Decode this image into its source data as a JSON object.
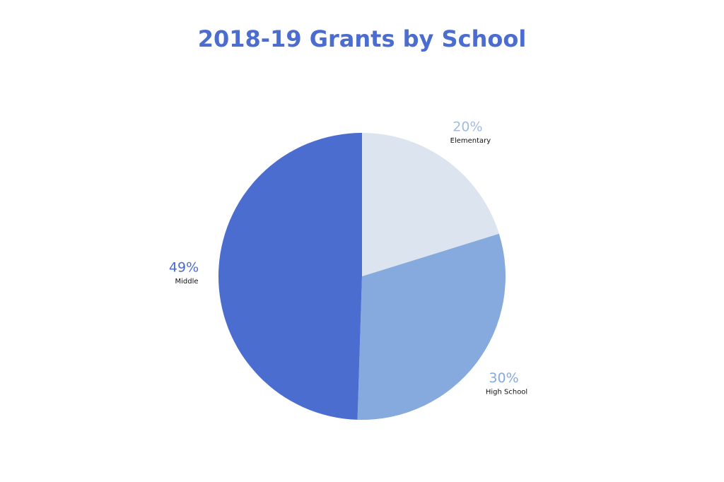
{
  "chart_data": {
    "type": "pie",
    "title": "2018-19 Grants by School",
    "categories": [
      "Elementary",
      "High School",
      "Middle"
    ],
    "values": [
      20,
      30,
      49
    ],
    "value_labels": [
      "20%",
      "30%",
      "49%"
    ],
    "colors": [
      "#dce5ef",
      "#86a9de",
      "#4a6dcf"
    ],
    "label_colors": [
      "#a3bbdf",
      "#86a9de",
      "#4a6dcf"
    ],
    "title_color": "#4a6dcf"
  }
}
